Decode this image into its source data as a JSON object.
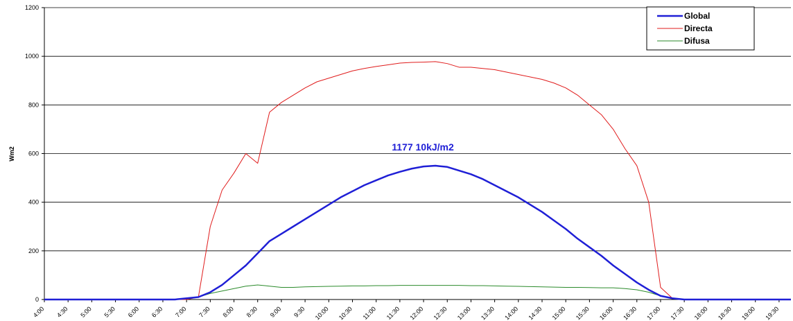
{
  "chart_data": {
    "type": "line",
    "y_label": "Wm2",
    "annotation": "1177  10kJ/m2",
    "x": [
      4,
      6.75,
      7,
      7.25,
      7.5,
      7.75,
      8,
      8.25,
      8.5,
      8.75,
      9,
      9.25,
      9.5,
      9.75,
      10,
      10.25,
      10.5,
      10.75,
      11,
      11.25,
      11.5,
      11.75,
      12,
      12.25,
      12.5,
      12.75,
      13,
      13.25,
      13.5,
      13.75,
      14,
      14.25,
      14.5,
      14.75,
      15,
      15.25,
      15.5,
      15.75,
      16,
      16.25,
      16.5,
      16.75,
      17,
      17.25,
      17.5,
      19.75
    ],
    "series": [
      {
        "name": "Global",
        "color": "#1f1fd6",
        "width": 2.5,
        "values": [
          0,
          0,
          5,
          10,
          30,
          60,
          100,
          140,
          190,
          240,
          270,
          300,
          330,
          360,
          390,
          420,
          445,
          470,
          490,
          510,
          525,
          538,
          547,
          550,
          545,
          530,
          515,
          495,
          470,
          445,
          420,
          390,
          360,
          325,
          290,
          250,
          215,
          180,
          140,
          105,
          70,
          40,
          15,
          5,
          0,
          0
        ]
      },
      {
        "name": "Directa",
        "color": "#e01b1b",
        "width": 1,
        "values": [
          0,
          0,
          0,
          10,
          300,
          450,
          520,
          600,
          560,
          770,
          810,
          840,
          870,
          895,
          910,
          925,
          940,
          950,
          958,
          965,
          972,
          975,
          976,
          978,
          970,
          955,
          955,
          950,
          945,
          935,
          925,
          915,
          905,
          890,
          870,
          840,
          800,
          760,
          700,
          620,
          550,
          400,
          50,
          5,
          0,
          0
        ]
      },
      {
        "name": "Difusa",
        "color": "#2a8a2a",
        "width": 1,
        "values": [
          0,
          0,
          3,
          10,
          25,
          35,
          45,
          55,
          60,
          55,
          50,
          50,
          52,
          53,
          54,
          55,
          56,
          56,
          57,
          57,
          58,
          58,
          58,
          58,
          58,
          58,
          57,
          57,
          56,
          55,
          54,
          53,
          52,
          51,
          50,
          50,
          49,
          48,
          48,
          45,
          40,
          30,
          15,
          5,
          0,
          0
        ]
      }
    ],
    "xlim": [
      4,
      19.75
    ],
    "xticks": [
      {
        "value": 4,
        "label": "4:00"
      },
      {
        "value": 4.5,
        "label": "4:30"
      },
      {
        "value": 5,
        "label": "5:00"
      },
      {
        "value": 5.5,
        "label": "5:30"
      },
      {
        "value": 6,
        "label": "6:00"
      },
      {
        "value": 6.5,
        "label": "6:30"
      },
      {
        "value": 7,
        "label": "7:00"
      },
      {
        "value": 7.5,
        "label": "7:30"
      },
      {
        "value": 8,
        "label": "8:00"
      },
      {
        "value": 8.5,
        "label": "8:30"
      },
      {
        "value": 9,
        "label": "9:00"
      },
      {
        "value": 9.5,
        "label": "9:30"
      },
      {
        "value": 10,
        "label": "10:00"
      },
      {
        "value": 10.5,
        "label": "10:30"
      },
      {
        "value": 11,
        "label": "11:00"
      },
      {
        "value": 11.5,
        "label": "11:30"
      },
      {
        "value": 12,
        "label": "12:00"
      },
      {
        "value": 12.5,
        "label": "12:30"
      },
      {
        "value": 13,
        "label": "13:00"
      },
      {
        "value": 13.5,
        "label": "13:30"
      },
      {
        "value": 14,
        "label": "14:00"
      },
      {
        "value": 14.5,
        "label": "14:30"
      },
      {
        "value": 15,
        "label": "15:00"
      },
      {
        "value": 15.5,
        "label": "15:30"
      },
      {
        "value": 16,
        "label": "16:00"
      },
      {
        "value": 16.5,
        "label": "16:30"
      },
      {
        "value": 17,
        "label": "17:00"
      },
      {
        "value": 17.5,
        "label": "17:30"
      },
      {
        "value": 18,
        "label": "18:00"
      },
      {
        "value": 18.5,
        "label": "18:30"
      },
      {
        "value": 19,
        "label": "19:00"
      },
      {
        "value": 19.5,
        "label": "19:30"
      }
    ],
    "ylim": [
      0,
      1200
    ],
    "yticks": [
      0,
      200,
      400,
      600,
      800,
      1000,
      1200
    ],
    "grid": true,
    "legend": "top-right"
  }
}
